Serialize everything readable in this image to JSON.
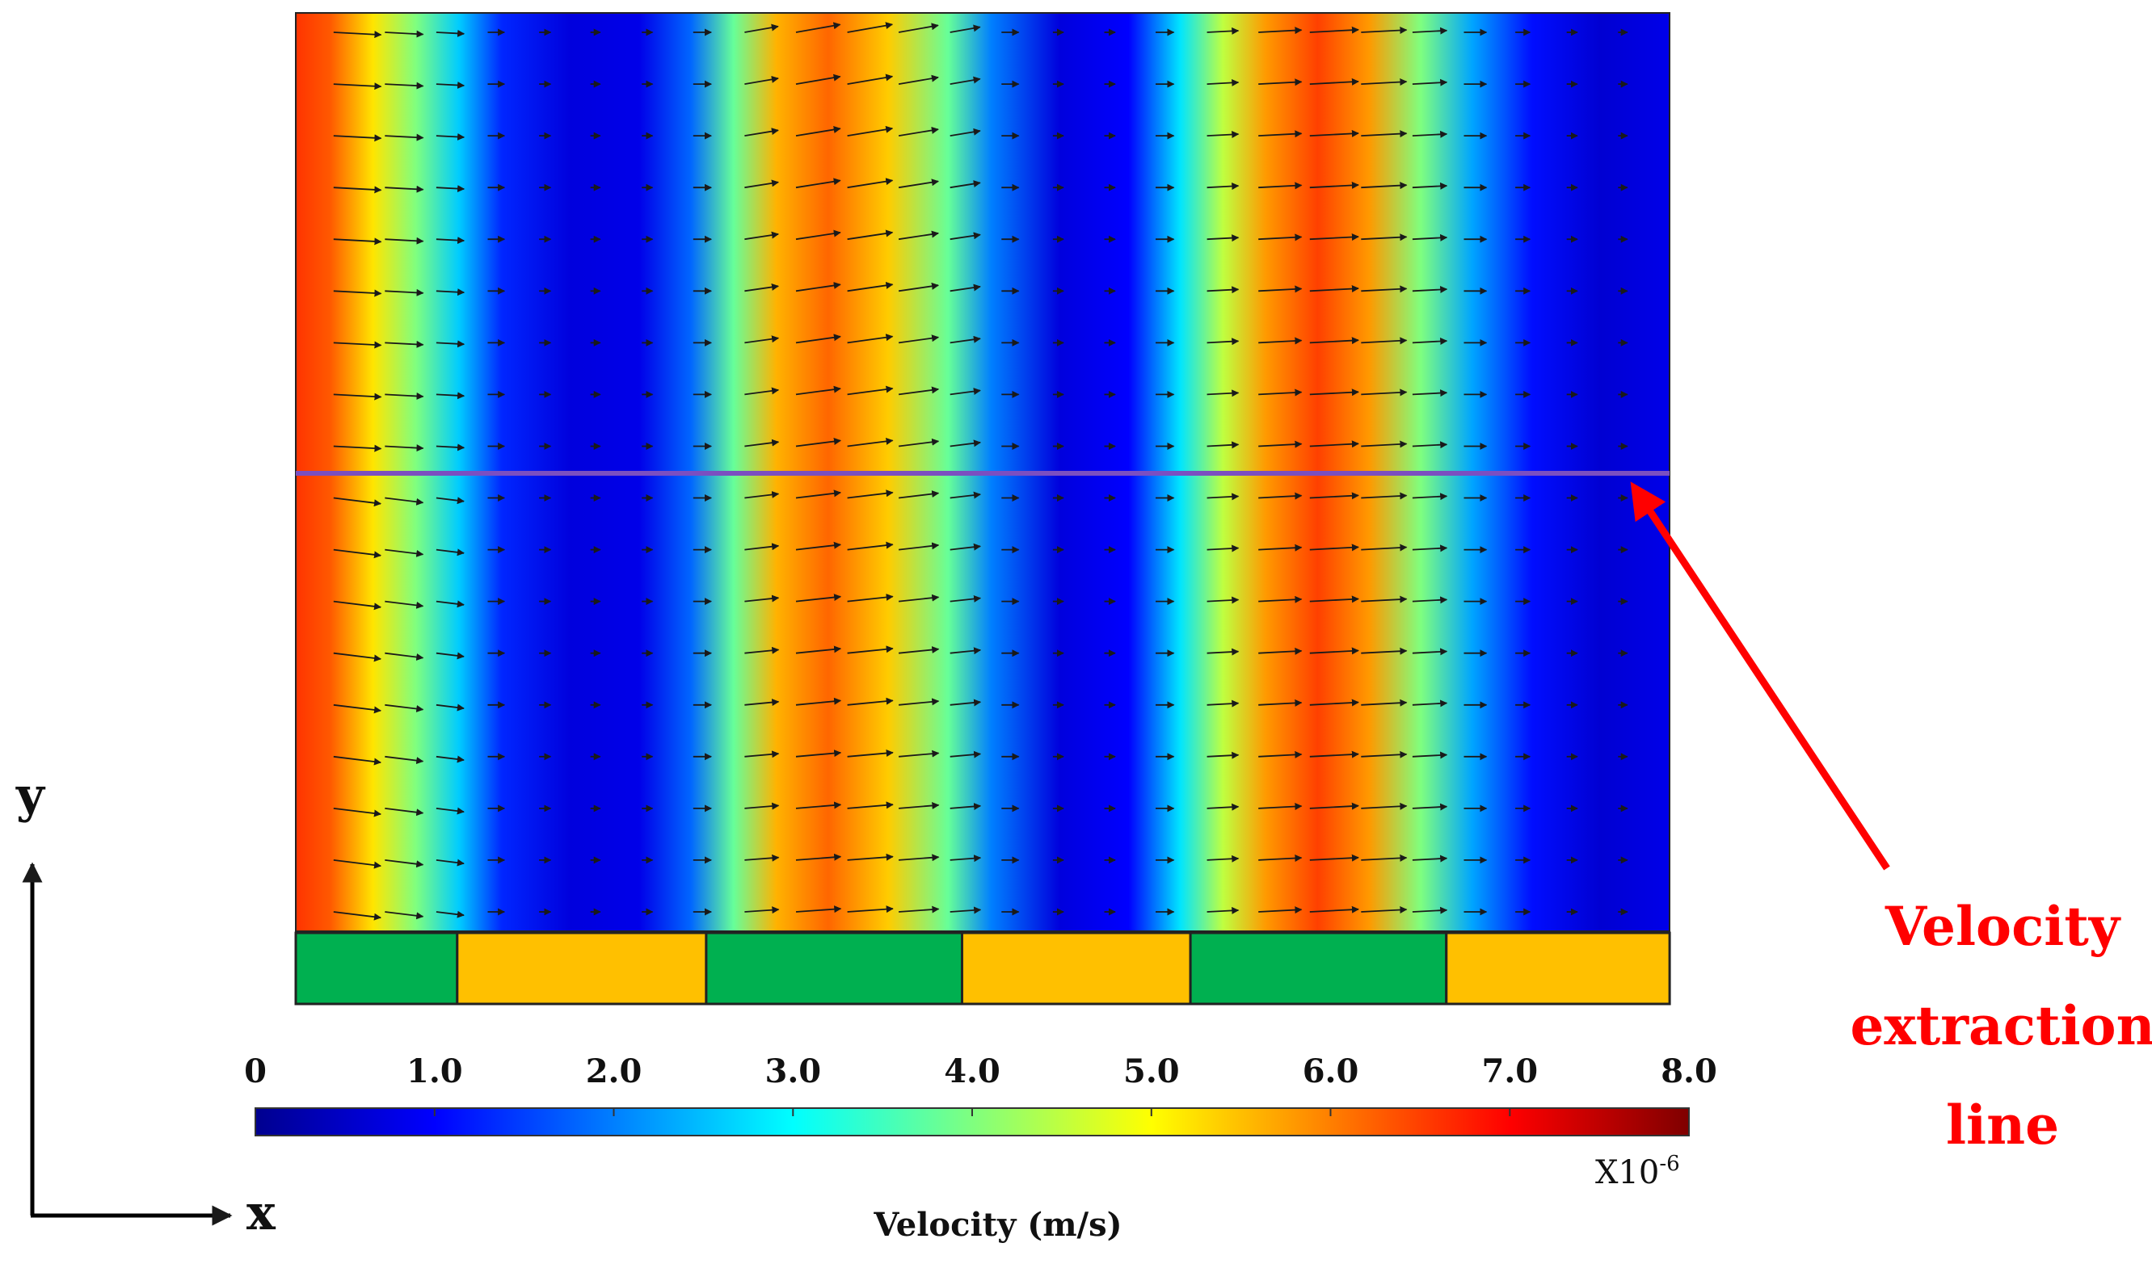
{
  "colorbar": {
    "tick_labels": [
      "0",
      "1.0",
      "2.0",
      "3.0",
      "4.0",
      "5.0",
      "6.0",
      "7.0",
      "8.0"
    ],
    "range": [
      0,
      8.0
    ],
    "scale_label": "X10",
    "scale_exponent": "-6",
    "title": "Velocity (m/s)",
    "colors": [
      "#00008f",
      "#0000ff",
      "#007fff",
      "#00ffff",
      "#7fff7f",
      "#ffff00",
      "#ff7f00",
      "#ff0000",
      "#7f0000"
    ]
  },
  "axes": {
    "x_label": "x",
    "y_label": "y"
  },
  "annotation": {
    "lines": [
      "Velocity",
      "extraction",
      "line"
    ],
    "color": "#ff0000"
  },
  "field": {
    "profile": [
      {
        "x": 0.0,
        "v": 6.6
      },
      {
        "x": 0.2,
        "v": 6.3
      },
      {
        "x": 0.45,
        "v": 5.2
      },
      {
        "x": 0.7,
        "v": 4.0
      },
      {
        "x": 0.95,
        "v": 2.6
      },
      {
        "x": 1.2,
        "v": 1.3
      },
      {
        "x": 1.6,
        "v": 0.7
      },
      {
        "x": 2.0,
        "v": 0.8
      },
      {
        "x": 2.3,
        "v": 1.8
      },
      {
        "x": 2.55,
        "v": 3.8
      },
      {
        "x": 2.8,
        "v": 5.6
      },
      {
        "x": 3.1,
        "v": 6.2
      },
      {
        "x": 3.45,
        "v": 5.4
      },
      {
        "x": 3.8,
        "v": 3.8
      },
      {
        "x": 4.05,
        "v": 2.0
      },
      {
        "x": 4.45,
        "v": 0.7
      },
      {
        "x": 4.85,
        "v": 1.0
      },
      {
        "x": 5.15,
        "v": 2.8
      },
      {
        "x": 5.4,
        "v": 4.5
      },
      {
        "x": 5.65,
        "v": 5.8
      },
      {
        "x": 5.95,
        "v": 6.5
      },
      {
        "x": 6.25,
        "v": 5.8
      },
      {
        "x": 6.55,
        "v": 4.0
      },
      {
        "x": 6.85,
        "v": 2.3
      },
      {
        "x": 7.2,
        "v": 1.1
      },
      {
        "x": 7.6,
        "v": 0.6
      },
      {
        "x": 8.0,
        "v": 0.8
      }
    ]
  },
  "electrodes": [
    {
      "x_start": 0.0,
      "x_end": 0.94,
      "color": "#00b050"
    },
    {
      "x_start": 0.94,
      "x_end": 2.39,
      "color": "#ffc000"
    },
    {
      "x_start": 2.39,
      "x_end": 3.88,
      "color": "#00b050"
    },
    {
      "x_start": 3.88,
      "x_end": 5.21,
      "color": "#ffc000"
    },
    {
      "x_start": 5.21,
      "x_end": 6.7,
      "color": "#00b050"
    },
    {
      "x_start": 6.7,
      "x_end": 8.0,
      "color": "#ffc000"
    }
  ],
  "extraction_line": {
    "y_fraction": 0.5,
    "color": "#7b4fc0"
  }
}
